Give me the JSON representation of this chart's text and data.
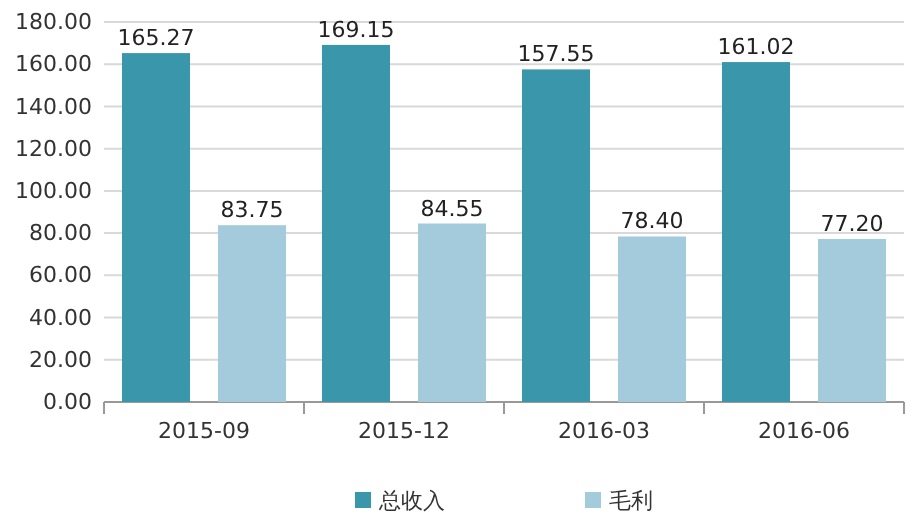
{
  "chart_data": {
    "type": "bar",
    "categories": [
      "2015-09",
      "2015-12",
      "2016-03",
      "2016-06"
    ],
    "series": [
      {
        "name": "总收入",
        "color": "#3a96aa",
        "values": [
          165.27,
          169.15,
          157.55,
          161.02
        ],
        "value_labels": [
          "165.27",
          "169.15",
          "157.55",
          "161.02"
        ]
      },
      {
        "name": "毛利",
        "color": "#a4cbdb",
        "values": [
          83.75,
          84.55,
          78.4,
          77.2
        ],
        "value_labels": [
          "83.75",
          "84.55",
          "78.40",
          "77.20"
        ]
      }
    ],
    "ylim": [
      0,
      180
    ],
    "yticks": [
      {
        "value": 0,
        "label": "0.00"
      },
      {
        "value": 20,
        "label": "20.00"
      },
      {
        "value": 40,
        "label": "40.00"
      },
      {
        "value": 60,
        "label": "60.00"
      },
      {
        "value": 80,
        "label": "80.00"
      },
      {
        "value": 100,
        "label": "100.00"
      },
      {
        "value": 120,
        "label": "120.00"
      },
      {
        "value": 140,
        "label": "140.00"
      },
      {
        "value": 160,
        "label": "160.00"
      },
      {
        "value": 180,
        "label": "180.00"
      }
    ],
    "grid": "y",
    "legend": "bottom"
  }
}
